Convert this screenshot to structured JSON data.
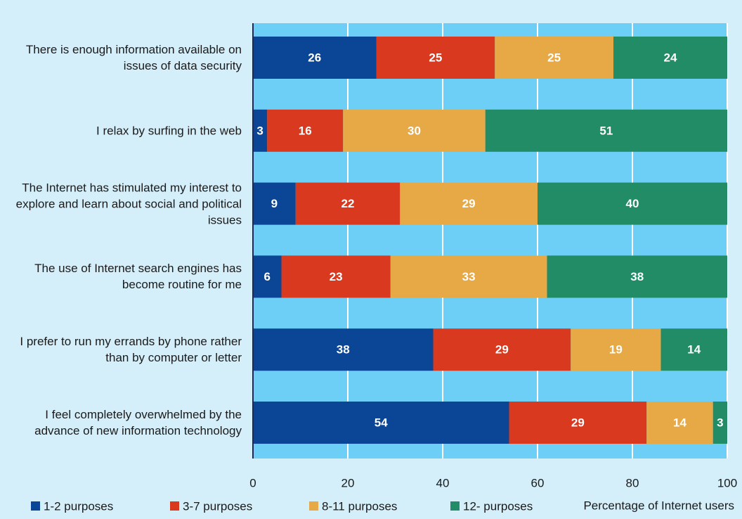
{
  "chart_data": {
    "type": "stacked-barh",
    "categories": [
      "There is enough information available on issues of data security",
      "I relax by surfing in the web",
      "The Internet has stimulated my interest to explore and learn about social and political issues",
      "The use of Internet search engines has become routine for me",
      "I prefer to run my errands by phone rather than by computer or letter",
      "I feel completely overwhelmed by the advance of new information technology"
    ],
    "series": [
      {
        "name": "1-2 purposes",
        "color": "#0b4595",
        "values": [
          26,
          3,
          9,
          6,
          38,
          54
        ]
      },
      {
        "name": "3-7 purposes",
        "color": "#d8391f",
        "values": [
          25,
          16,
          22,
          23,
          29,
          29
        ]
      },
      {
        "name": "8-11 purposes",
        "color": "#e7a846",
        "values": [
          25,
          30,
          29,
          33,
          19,
          14
        ]
      },
      {
        "name": "12- purposes",
        "color": "#218c66",
        "values": [
          24,
          51,
          40,
          38,
          14,
          3
        ]
      }
    ],
    "xlabel": "Percentage of Internet users",
    "xlim": [
      0,
      100
    ],
    "xticks": [
      0,
      20,
      40,
      60,
      80,
      100
    ],
    "grid": true,
    "legend": "bottom"
  }
}
